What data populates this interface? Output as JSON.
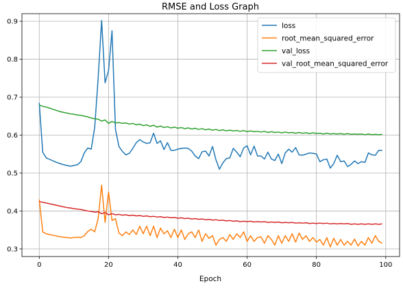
{
  "chart_data": {
    "type": "line",
    "title": "RMSE and Loss Graph",
    "xlabel": "Epoch",
    "ylabel": "",
    "xlim": [
      -5,
      104
    ],
    "ylim": [
      0.28,
      0.92
    ],
    "xticks": [
      0,
      20,
      40,
      60,
      80,
      100
    ],
    "yticks": [
      0.3,
      0.4,
      0.5,
      0.6,
      0.7,
      0.8,
      0.9
    ],
    "grid": true,
    "legend": "top-right",
    "x": [
      0,
      1,
      2,
      3,
      4,
      5,
      6,
      7,
      8,
      9,
      10,
      11,
      12,
      13,
      14,
      15,
      16,
      17,
      18,
      19,
      20,
      21,
      22,
      23,
      24,
      25,
      26,
      27,
      28,
      29,
      30,
      31,
      32,
      33,
      34,
      35,
      36,
      37,
      38,
      39,
      40,
      41,
      42,
      43,
      44,
      45,
      46,
      47,
      48,
      49,
      50,
      51,
      52,
      53,
      54,
      55,
      56,
      57,
      58,
      59,
      60,
      61,
      62,
      63,
      64,
      65,
      66,
      67,
      68,
      69,
      70,
      71,
      72,
      73,
      74,
      75,
      76,
      77,
      78,
      79,
      80,
      81,
      82,
      83,
      84,
      85,
      86,
      87,
      88,
      89,
      90,
      91,
      92,
      93,
      94,
      95,
      96,
      97,
      98,
      99
    ],
    "series": [
      {
        "name": "loss",
        "color": "#1f77b4",
        "values": [
          0.685,
          0.555,
          0.54,
          0.536,
          0.532,
          0.528,
          0.525,
          0.522,
          0.52,
          0.518,
          0.52,
          0.522,
          0.53,
          0.553,
          0.566,
          0.563,
          0.62,
          0.75,
          0.902,
          0.738,
          0.77,
          0.875,
          0.615,
          0.57,
          0.557,
          0.548,
          0.552,
          0.565,
          0.58,
          0.588,
          0.582,
          0.578,
          0.58,
          0.605,
          0.578,
          0.585,
          0.562,
          0.58,
          0.56,
          0.56,
          0.563,
          0.565,
          0.566,
          0.565,
          0.558,
          0.545,
          0.538,
          0.556,
          0.558,
          0.545,
          0.57,
          0.535,
          0.51,
          0.527,
          0.538,
          0.54,
          0.565,
          0.555,
          0.543,
          0.566,
          0.572,
          0.548,
          0.571,
          0.545,
          0.545,
          0.537,
          0.555,
          0.537,
          0.533,
          0.55,
          0.525,
          0.553,
          0.563,
          0.555,
          0.567,
          0.548,
          0.547,
          0.55,
          0.553,
          0.552,
          0.55,
          0.53,
          0.535,
          0.537,
          0.513,
          0.525,
          0.547,
          0.53,
          0.532,
          0.517,
          0.523,
          0.532,
          0.525,
          0.53,
          0.528,
          0.553,
          0.548,
          0.547,
          0.56,
          0.56
        ]
      },
      {
        "name": "root_mean_squared_error",
        "color": "#ff7f0e",
        "values": [
          0.43,
          0.345,
          0.34,
          0.338,
          0.336,
          0.334,
          0.332,
          0.331,
          0.33,
          0.329,
          0.33,
          0.331,
          0.33,
          0.335,
          0.346,
          0.352,
          0.345,
          0.38,
          0.468,
          0.37,
          0.45,
          0.375,
          0.38,
          0.342,
          0.335,
          0.345,
          0.338,
          0.35,
          0.338,
          0.36,
          0.34,
          0.36,
          0.335,
          0.36,
          0.33,
          0.355,
          0.34,
          0.348,
          0.33,
          0.352,
          0.33,
          0.35,
          0.325,
          0.34,
          0.345,
          0.33,
          0.35,
          0.32,
          0.34,
          0.328,
          0.335,
          0.31,
          0.325,
          0.33,
          0.32,
          0.338,
          0.325,
          0.34,
          0.33,
          0.345,
          0.32,
          0.335,
          0.32,
          0.33,
          0.332,
          0.315,
          0.335,
          0.325,
          0.31,
          0.335,
          0.315,
          0.335,
          0.32,
          0.34,
          0.318,
          0.342,
          0.325,
          0.335,
          0.32,
          0.33,
          0.318,
          0.325,
          0.31,
          0.33,
          0.305,
          0.328,
          0.31,
          0.325,
          0.31,
          0.32,
          0.31,
          0.326,
          0.308,
          0.32,
          0.31,
          0.33,
          0.315,
          0.335,
          0.32,
          0.315
        ]
      },
      {
        "name": "val_loss",
        "color": "#2ca02c",
        "values": [
          0.679,
          0.676,
          0.674,
          0.671,
          0.668,
          0.665,
          0.662,
          0.66,
          0.658,
          0.656,
          0.655,
          0.653,
          0.652,
          0.65,
          0.648,
          0.645,
          0.643,
          0.642,
          0.637,
          0.64,
          0.631,
          0.636,
          0.632,
          0.633,
          0.631,
          0.632,
          0.629,
          0.631,
          0.627,
          0.629,
          0.625,
          0.627,
          0.623,
          0.626,
          0.621,
          0.624,
          0.62,
          0.622,
          0.619,
          0.621,
          0.618,
          0.62,
          0.617,
          0.619,
          0.616,
          0.618,
          0.615,
          0.617,
          0.614,
          0.616,
          0.613,
          0.615,
          0.612,
          0.614,
          0.611,
          0.613,
          0.611,
          0.612,
          0.61,
          0.612,
          0.609,
          0.611,
          0.609,
          0.61,
          0.608,
          0.61,
          0.607,
          0.609,
          0.607,
          0.608,
          0.606,
          0.608,
          0.606,
          0.607,
          0.605,
          0.607,
          0.605,
          0.606,
          0.604,
          0.606,
          0.604,
          0.605,
          0.603,
          0.605,
          0.603,
          0.604,
          0.603,
          0.604,
          0.602,
          0.604,
          0.602,
          0.603,
          0.602,
          0.603,
          0.601,
          0.603,
          0.601,
          0.602,
          0.601,
          0.602
        ]
      },
      {
        "name": "val_root_mean_squared_error",
        "color": "#d62728",
        "values": [
          0.425,
          0.423,
          0.421,
          0.419,
          0.417,
          0.415,
          0.413,
          0.411,
          0.409,
          0.408,
          0.406,
          0.405,
          0.404,
          0.402,
          0.4,
          0.399,
          0.397,
          0.398,
          0.393,
          0.396,
          0.39,
          0.393,
          0.39,
          0.391,
          0.389,
          0.39,
          0.388,
          0.389,
          0.387,
          0.388,
          0.386,
          0.387,
          0.385,
          0.386,
          0.384,
          0.385,
          0.383,
          0.384,
          0.382,
          0.383,
          0.381,
          0.382,
          0.38,
          0.381,
          0.379,
          0.38,
          0.378,
          0.379,
          0.377,
          0.378,
          0.376,
          0.377,
          0.375,
          0.376,
          0.374,
          0.375,
          0.373,
          0.374,
          0.372,
          0.373,
          0.372,
          0.373,
          0.371,
          0.372,
          0.371,
          0.372,
          0.37,
          0.371,
          0.37,
          0.371,
          0.369,
          0.37,
          0.369,
          0.37,
          0.368,
          0.369,
          0.368,
          0.369,
          0.367,
          0.368,
          0.367,
          0.368,
          0.367,
          0.368,
          0.366,
          0.367,
          0.366,
          0.367,
          0.366,
          0.367,
          0.365,
          0.366,
          0.365,
          0.366,
          0.365,
          0.366,
          0.365,
          0.366,
          0.365,
          0.366
        ]
      }
    ]
  }
}
